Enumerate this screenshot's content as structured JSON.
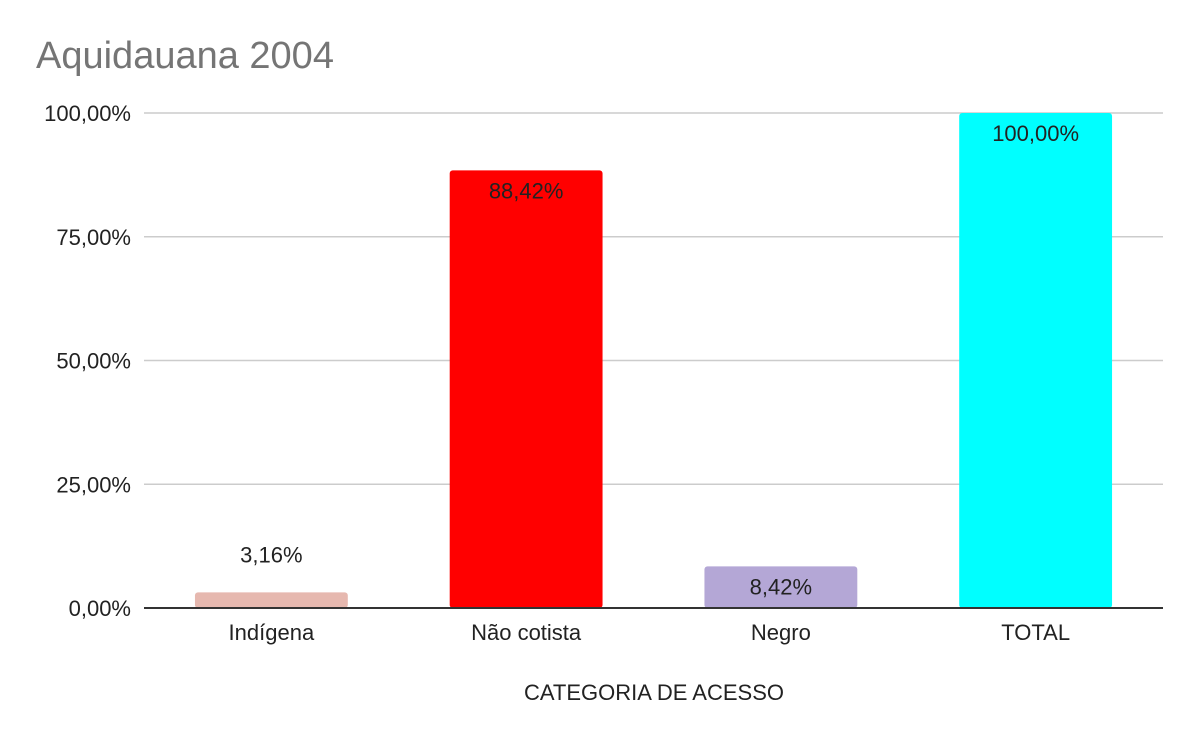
{
  "chart_data": {
    "type": "bar",
    "title": "Aquidauana 2004",
    "xlabel": "CATEGORIA DE ACESSO",
    "ylabel": "",
    "categories": [
      "Indígena",
      "Não cotista",
      "Negro",
      "TOTAL"
    ],
    "values": [
      3.16,
      88.42,
      8.42,
      100.0
    ],
    "data_labels": [
      "3,16%",
      "88,42%",
      "8,42%",
      "100,00%"
    ],
    "colors": [
      "#e6b8af",
      "#ff0000",
      "#b4a7d6",
      "#00ffff"
    ],
    "ylim": [
      0,
      100
    ],
    "yticks": [
      0,
      25,
      50,
      75,
      100
    ],
    "ytick_labels": [
      "0,00%",
      "25,00%",
      "50,00%",
      "75,00%",
      "100,00%"
    ],
    "grid": true,
    "legend": "none"
  }
}
